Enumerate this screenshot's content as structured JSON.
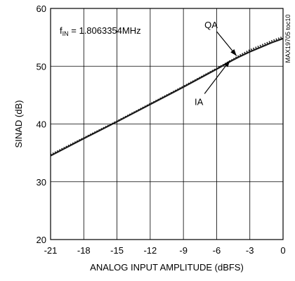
{
  "chart_data": {
    "type": "line",
    "title": "",
    "xlabel": "ANALOG INPUT AMPLITUDE (dBFS)",
    "ylabel": "SINAD (dB)",
    "xlim": [
      -21,
      0
    ],
    "ylim": [
      20,
      60
    ],
    "xticks": [
      -21,
      -18,
      -15,
      -12,
      -9,
      -6,
      -3,
      0
    ],
    "yticks": [
      20,
      30,
      40,
      50,
      60
    ],
    "grid": true,
    "fin_label": {
      "prefix": "f",
      "sub": "IN",
      "rest": " = 1.8063354MHz"
    },
    "side_code": "MAX19705 toc10",
    "series": [
      {
        "name": "IA",
        "style": "solid",
        "color": "#1a1a1a",
        "x": [
          -21,
          -18,
          -15,
          -12,
          -9,
          -6,
          -4.6,
          -4,
          -3,
          -2,
          -1,
          0
        ],
        "y": [
          34.5,
          37.5,
          40.4,
          43.4,
          46.4,
          49.5,
          51.0,
          51.6,
          52.5,
          53.3,
          54.1,
          54.8
        ]
      },
      {
        "name": "QA",
        "style": "dotted",
        "color": "#1a1a1a",
        "x": [
          -21,
          -18,
          -15,
          -12,
          -9,
          -6,
          -4.6,
          -4,
          -3,
          -2,
          -1,
          0
        ],
        "y": [
          34.7,
          37.6,
          40.5,
          43.5,
          46.5,
          49.6,
          51.1,
          51.8,
          52.8,
          53.6,
          54.4,
          55.1
        ]
      }
    ],
    "annotations": [
      {
        "text": "QA",
        "x": -6.5,
        "y": 56.6,
        "arrow_to": [
          -4.2,
          51.8
        ]
      },
      {
        "text": "IA",
        "x": -7.6,
        "y": 43.3,
        "arrow_to": [
          -4.8,
          51.0
        ]
      }
    ]
  }
}
